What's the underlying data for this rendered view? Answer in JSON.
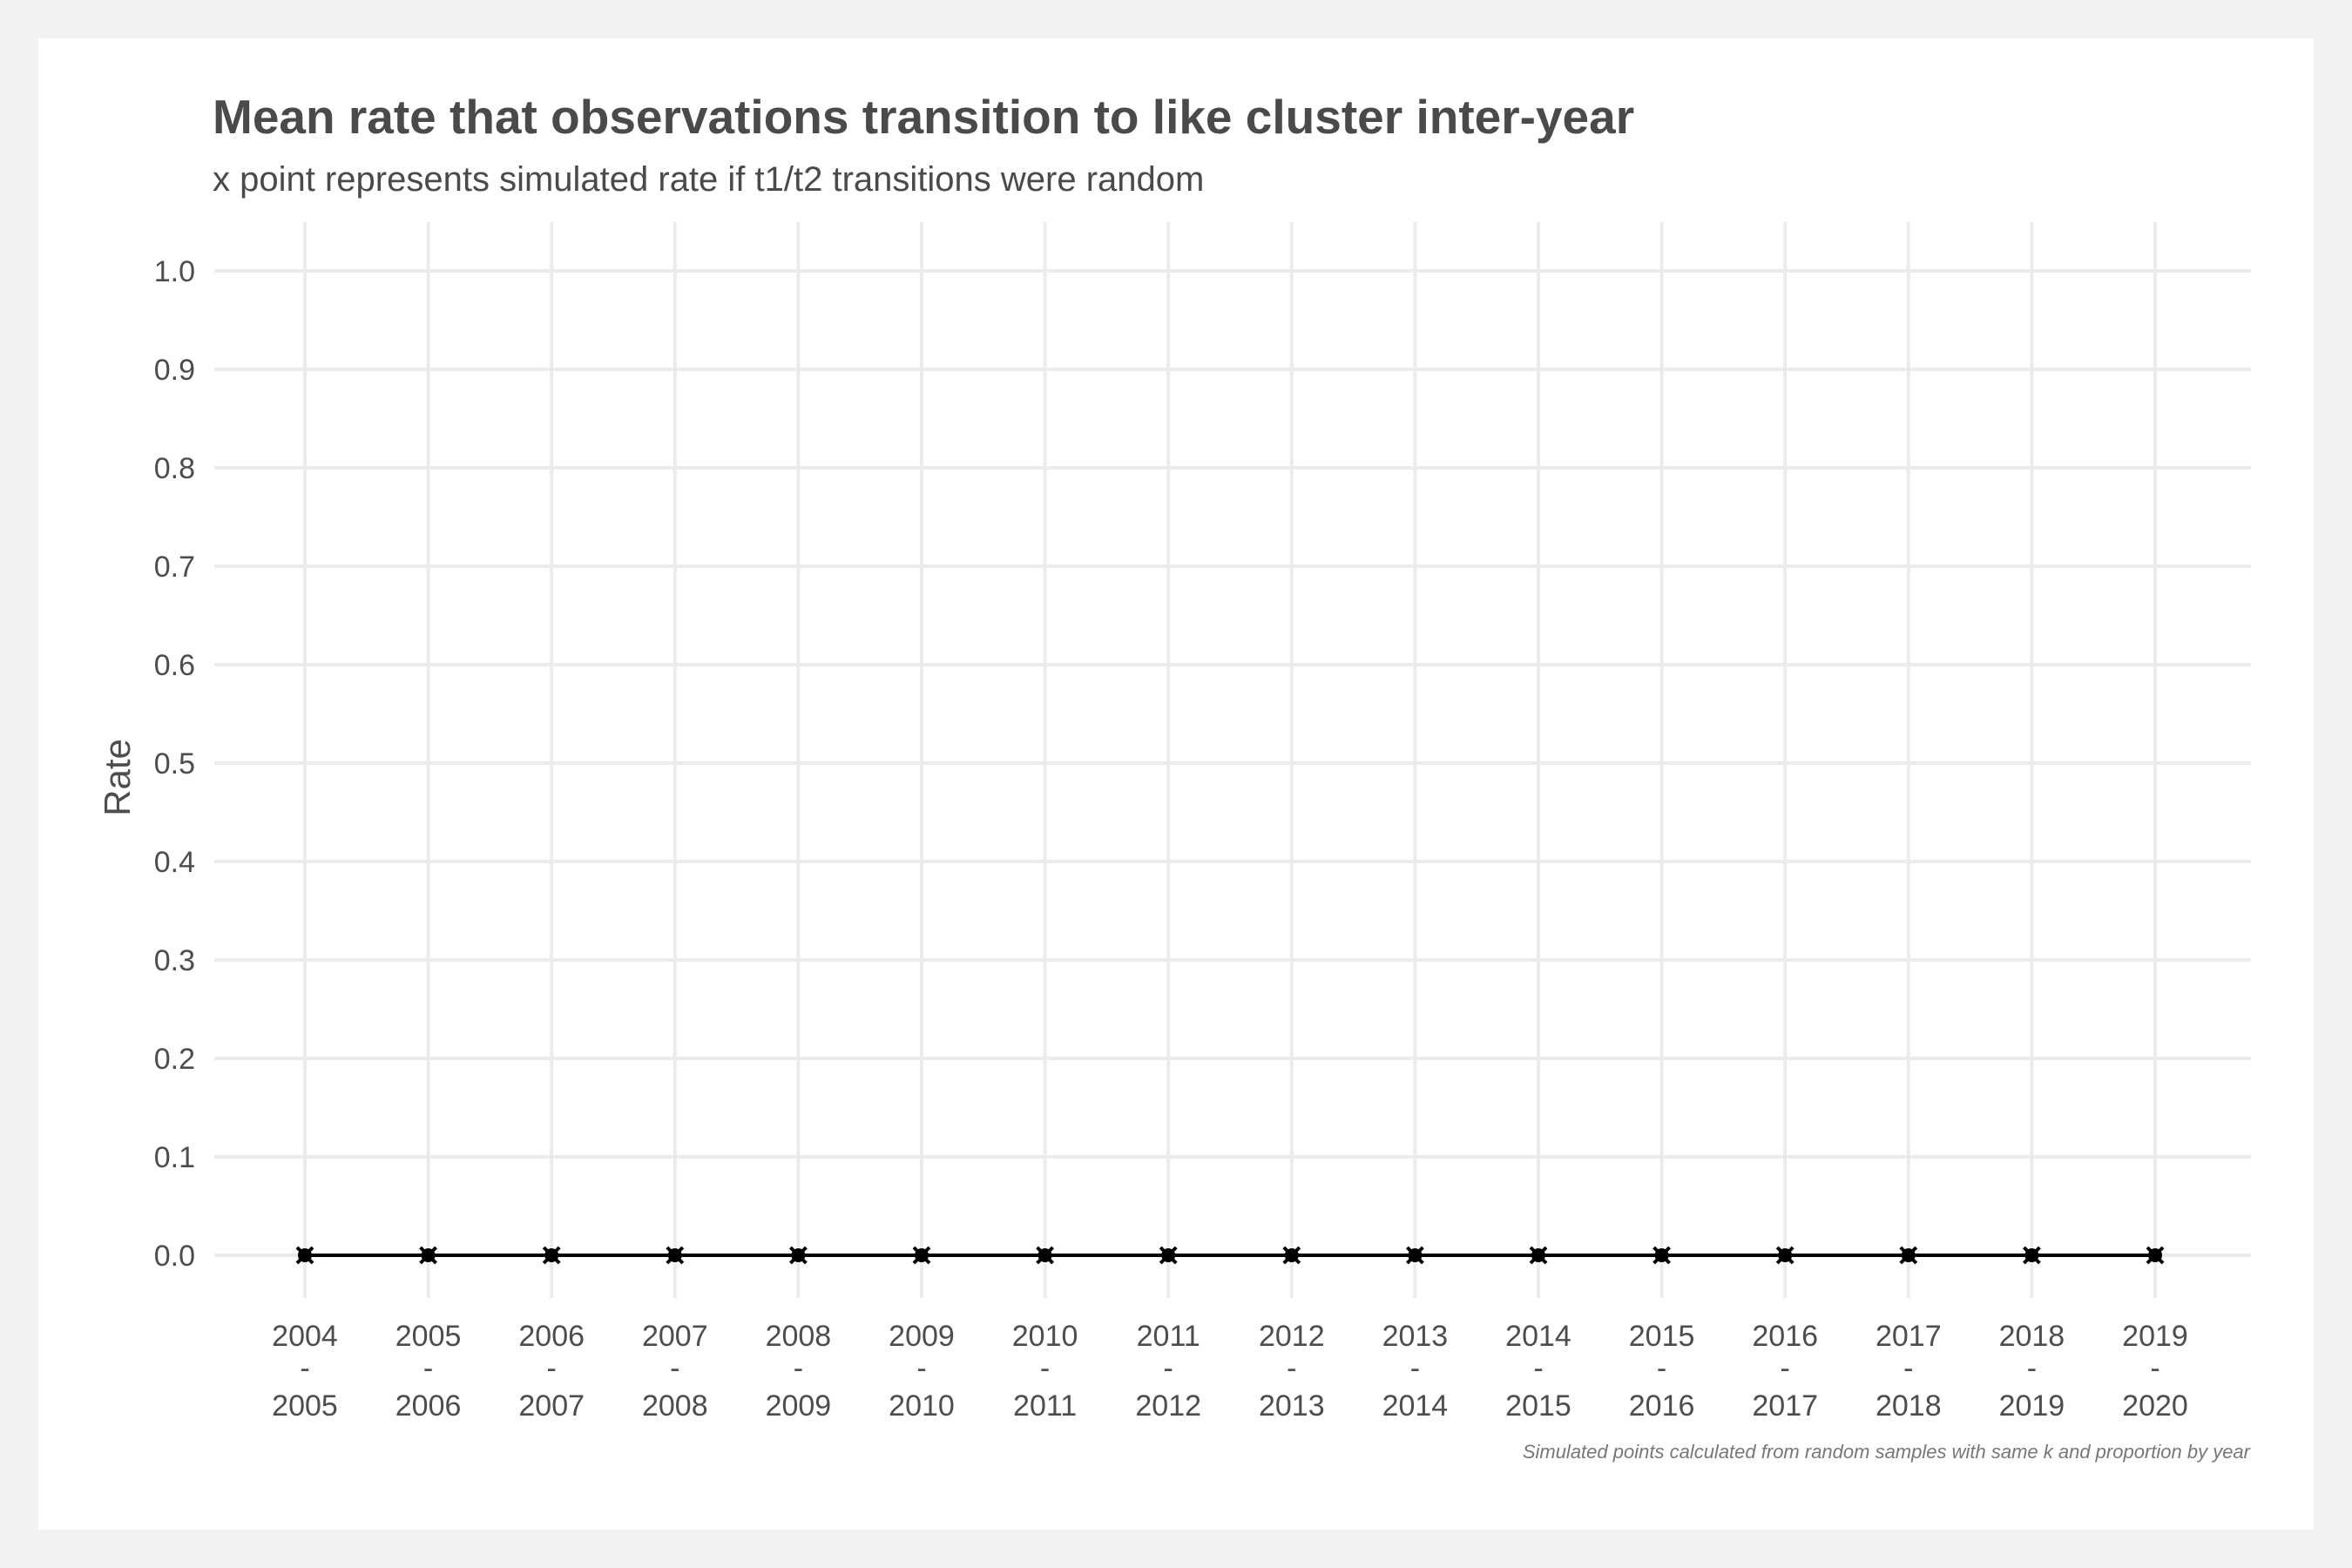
{
  "chart_data": {
    "type": "line",
    "title": "Mean rate that observations transition to like cluster inter-year",
    "subtitle": "x point represents simulated rate if t1/t2 transitions were random",
    "caption": "Simulated points calculated from random samples with same k and proportion by year",
    "xlabel": "",
    "ylabel": "Rate",
    "categories": [
      [
        "2004",
        "-",
        "2005"
      ],
      [
        "2005",
        "-",
        "2006"
      ],
      [
        "2006",
        "-",
        "2007"
      ],
      [
        "2007",
        "-",
        "2008"
      ],
      [
        "2008",
        "-",
        "2009"
      ],
      [
        "2009",
        "-",
        "2010"
      ],
      [
        "2010",
        "-",
        "2011"
      ],
      [
        "2011",
        "-",
        "2012"
      ],
      [
        "2012",
        "-",
        "2013"
      ],
      [
        "2013",
        "-",
        "2014"
      ],
      [
        "2014",
        "-",
        "2015"
      ],
      [
        "2015",
        "-",
        "2016"
      ],
      [
        "2016",
        "-",
        "2017"
      ],
      [
        "2017",
        "-",
        "2018"
      ],
      [
        "2018",
        "-",
        "2019"
      ],
      [
        "2019",
        "-",
        "2020"
      ]
    ],
    "series": [
      {
        "values": [
          0,
          0,
          0,
          0,
          0,
          0,
          0,
          0,
          0,
          0,
          0,
          0,
          0,
          0,
          0,
          0
        ],
        "marker": "point"
      },
      {
        "values": [
          0,
          0,
          0,
          0,
          0,
          0,
          0,
          0,
          0,
          0,
          0,
          0,
          0,
          0,
          0,
          0
        ],
        "marker": "x"
      }
    ],
    "yticks": [
      "0.0",
      "0.1",
      "0.2",
      "0.3",
      "0.4",
      "0.5",
      "0.6",
      "0.7",
      "0.8",
      "0.9",
      "1.0"
    ],
    "ylim": [
      0,
      1
    ],
    "grid": true,
    "legend": "none",
    "colors": {
      "line": "#000000",
      "grid": "#ebebeb",
      "text": "#4d4d4d",
      "background": "#ffffff",
      "outer": "#f2f2f2"
    }
  }
}
